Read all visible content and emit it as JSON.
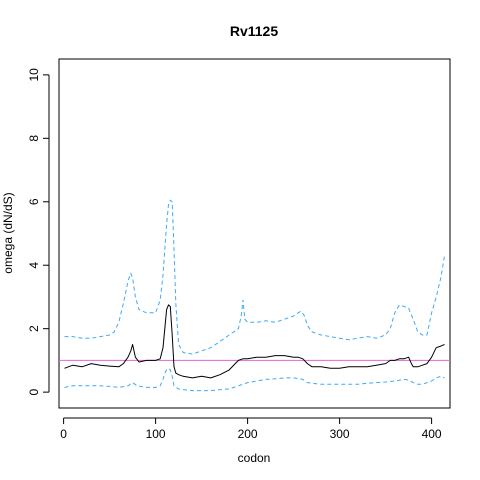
{
  "chart_data": {
    "type": "line",
    "title": "Rv1125",
    "xlabel": "codon",
    "ylabel": "omega (dN/dS)",
    "xlim": [
      -5,
      420
    ],
    "ylim": [
      -0.5,
      10.5
    ],
    "xticks": [
      0,
      100,
      200,
      300,
      400
    ],
    "yticks": [
      0,
      2,
      4,
      6,
      8,
      10
    ],
    "reference_line": {
      "y": 1.0,
      "color": "#dd66dd"
    },
    "grid": false,
    "legend": "none",
    "series": [
      {
        "role": "estimate",
        "color": "#000000",
        "dash": "solid",
        "x": [
          1,
          10,
          20,
          30,
          40,
          50,
          60,
          65,
          70,
          73,
          75,
          78,
          82,
          90,
          100,
          105,
          108,
          110,
          112,
          114,
          116,
          118,
          120,
          122,
          125,
          130,
          140,
          150,
          160,
          170,
          180,
          190,
          195,
          200,
          210,
          220,
          230,
          240,
          250,
          255,
          260,
          265,
          270,
          280,
          290,
          300,
          310,
          320,
          330,
          340,
          350,
          355,
          360,
          365,
          370,
          375,
          378,
          380,
          385,
          390,
          395,
          400,
          405,
          410,
          414
        ],
        "y": [
          0.75,
          0.85,
          0.8,
          0.9,
          0.85,
          0.82,
          0.8,
          0.9,
          1.1,
          1.3,
          1.5,
          1.1,
          0.95,
          1.0,
          1.0,
          1.05,
          1.4,
          2.0,
          2.6,
          2.75,
          2.7,
          1.8,
          0.8,
          0.6,
          0.55,
          0.5,
          0.45,
          0.5,
          0.45,
          0.55,
          0.7,
          1.0,
          1.05,
          1.05,
          1.1,
          1.1,
          1.15,
          1.15,
          1.1,
          1.1,
          1.05,
          0.9,
          0.8,
          0.8,
          0.75,
          0.75,
          0.8,
          0.8,
          0.8,
          0.85,
          0.9,
          1.0,
          1.0,
          1.05,
          1.05,
          1.1,
          0.9,
          0.8,
          0.8,
          0.85,
          0.9,
          1.1,
          1.4,
          1.45,
          1.5
        ]
      },
      {
        "role": "upper-bound",
        "color": "#3fa9f5",
        "dash": "dashed",
        "x": [
          1,
          10,
          20,
          30,
          40,
          50,
          55,
          60,
          65,
          70,
          73,
          75,
          78,
          82,
          90,
          100,
          105,
          108,
          110,
          112,
          114,
          116,
          118,
          120,
          122,
          125,
          130,
          140,
          150,
          160,
          170,
          180,
          190,
          193,
          195,
          197,
          200,
          210,
          220,
          230,
          240,
          250,
          255,
          258,
          262,
          265,
          270,
          280,
          290,
          300,
          310,
          320,
          330,
          340,
          350,
          355,
          360,
          365,
          370,
          375,
          380,
          385,
          390,
          395,
          400,
          405,
          410,
          414
        ],
        "y": [
          1.75,
          1.75,
          1.7,
          1.7,
          1.75,
          1.8,
          1.9,
          2.2,
          2.8,
          3.5,
          3.75,
          3.6,
          3.0,
          2.6,
          2.5,
          2.5,
          2.9,
          3.7,
          4.5,
          5.3,
          5.9,
          6.05,
          6.0,
          4.5,
          2.8,
          1.5,
          1.25,
          1.2,
          1.3,
          1.4,
          1.6,
          1.8,
          2.0,
          2.4,
          2.9,
          2.3,
          2.2,
          2.2,
          2.25,
          2.2,
          2.3,
          2.4,
          2.5,
          2.55,
          2.4,
          2.1,
          1.9,
          1.8,
          1.75,
          1.7,
          1.65,
          1.7,
          1.75,
          1.7,
          1.8,
          2.0,
          2.5,
          2.75,
          2.7,
          2.65,
          2.3,
          1.9,
          1.8,
          1.8,
          2.5,
          3.0,
          3.6,
          4.3
        ]
      },
      {
        "role": "lower-bound",
        "color": "#3fa9f5",
        "dash": "dashed",
        "x": [
          1,
          10,
          20,
          30,
          40,
          50,
          60,
          70,
          75,
          80,
          90,
          100,
          105,
          108,
          110,
          112,
          114,
          116,
          118,
          120,
          125,
          130,
          140,
          150,
          160,
          170,
          180,
          190,
          200,
          210,
          220,
          230,
          240,
          250,
          260,
          265,
          270,
          280,
          290,
          300,
          310,
          320,
          330,
          340,
          350,
          360,
          370,
          375,
          380,
          385,
          390,
          400,
          405,
          410,
          414
        ],
        "y": [
          0.15,
          0.2,
          0.2,
          0.2,
          0.2,
          0.18,
          0.15,
          0.2,
          0.3,
          0.2,
          0.15,
          0.15,
          0.2,
          0.4,
          0.6,
          0.7,
          0.75,
          0.7,
          0.5,
          0.2,
          0.1,
          0.08,
          0.05,
          0.05,
          0.05,
          0.08,
          0.1,
          0.2,
          0.3,
          0.35,
          0.4,
          0.42,
          0.45,
          0.45,
          0.4,
          0.3,
          0.28,
          0.25,
          0.25,
          0.25,
          0.25,
          0.25,
          0.28,
          0.3,
          0.32,
          0.35,
          0.4,
          0.38,
          0.3,
          0.25,
          0.25,
          0.35,
          0.45,
          0.5,
          0.45
        ]
      }
    ]
  }
}
